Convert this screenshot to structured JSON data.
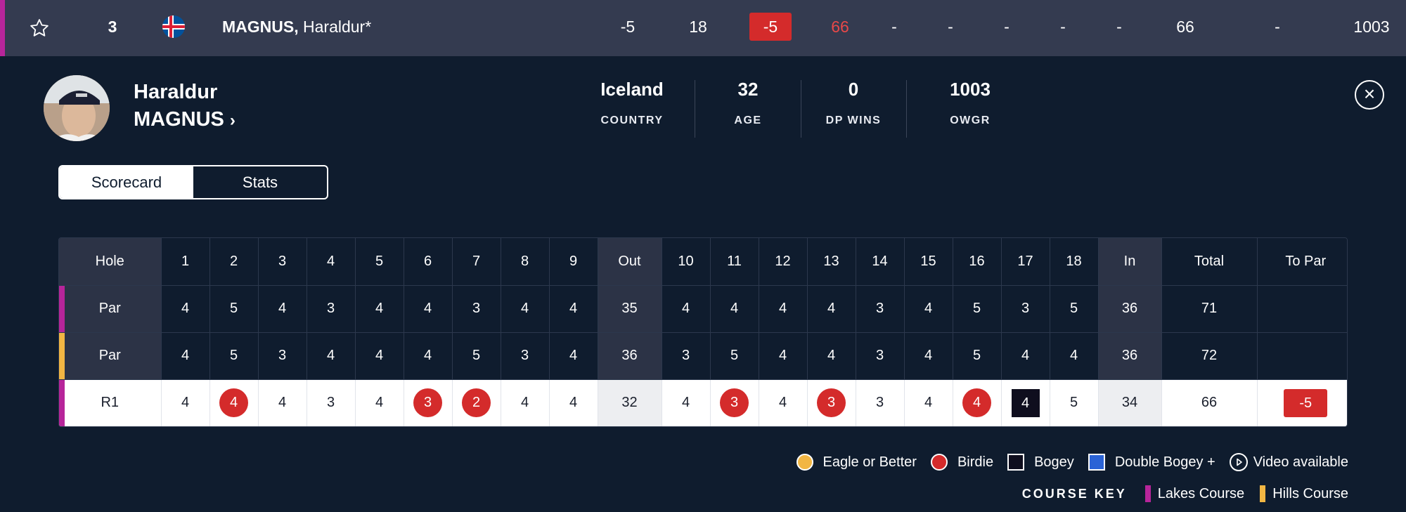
{
  "leaderboard_row": {
    "position": "3",
    "name_last": "MAGNUS,",
    "name_first": " Haraldur*",
    "to_par": "-5",
    "thru": "18",
    "today": "-5",
    "r1": "66",
    "r2": "-",
    "r3": "-",
    "r4": "-",
    "r5": "-",
    "r6": "-",
    "total": "66",
    "dash": "-",
    "ranking": "1003"
  },
  "player": {
    "first_name": "Haraldur",
    "last_name": "MAGNUS",
    "stats": [
      {
        "value": "Iceland",
        "label": "COUNTRY"
      },
      {
        "value": "32",
        "label": "AGE"
      },
      {
        "value": "0",
        "label": "DP WINS"
      },
      {
        "value": "1003",
        "label": "OWGR"
      }
    ]
  },
  "tabs": [
    "Scorecard",
    "Stats"
  ],
  "scorecard": {
    "header": [
      "Hole",
      "1",
      "2",
      "3",
      "4",
      "5",
      "6",
      "7",
      "8",
      "9",
      "Out",
      "10",
      "11",
      "12",
      "13",
      "14",
      "15",
      "16",
      "17",
      "18",
      "In",
      "Total",
      "To Par"
    ],
    "par_lakes": [
      "Par",
      "4",
      "5",
      "4",
      "3",
      "4",
      "4",
      "3",
      "4",
      "4",
      "35",
      "4",
      "4",
      "4",
      "4",
      "3",
      "4",
      "5",
      "3",
      "5",
      "36",
      "71",
      ""
    ],
    "par_hills": [
      "Par",
      "4",
      "5",
      "3",
      "4",
      "4",
      "4",
      "5",
      "3",
      "4",
      "36",
      "3",
      "5",
      "4",
      "4",
      "3",
      "4",
      "5",
      "4",
      "4",
      "36",
      "72",
      ""
    ],
    "r1": [
      "R1",
      "4",
      "4",
      "4",
      "3",
      "4",
      "3",
      "2",
      "4",
      "4",
      "32",
      "4",
      "3",
      "4",
      "3",
      "3",
      "4",
      "4",
      "4",
      "5",
      "34",
      "66",
      "-5"
    ]
  },
  "legend": {
    "eagle": "Eagle or Better",
    "birdie": "Birdie",
    "bogey": "Bogey",
    "double": "Double Bogey +",
    "video": "Video available",
    "course_key": "COURSE KEY",
    "lakes": "Lakes Course",
    "hills": "Hills Course"
  },
  "colors": {
    "lakes": "#b7259a",
    "hills": "#f2b643",
    "birdie": "#d42b2b",
    "eagle": "#f2b643",
    "bogey": "#0f0e1e",
    "double": "#2b63d6"
  }
}
